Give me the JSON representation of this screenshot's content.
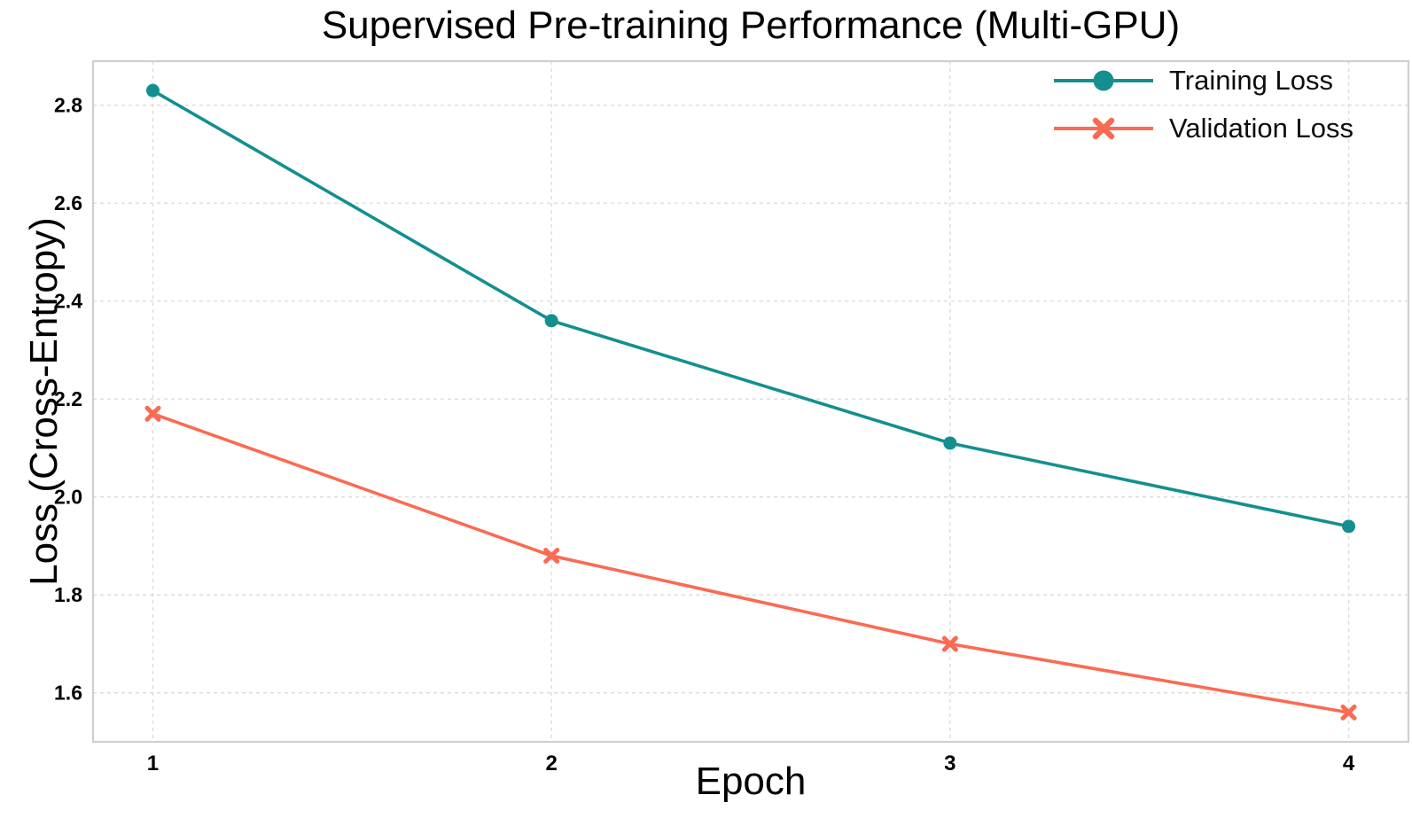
{
  "chart_data": {
    "type": "line",
    "title": "Supervised Pre-training Performance (Multi-GPU)",
    "xlabel": "Epoch",
    "ylabel": "Loss (Cross-Entropy)",
    "x": [
      1,
      2,
      3,
      4
    ],
    "series": [
      {
        "name": "Training Loss",
        "marker": "circle",
        "color": "#148F8F",
        "values": [
          2.83,
          2.36,
          2.11,
          1.94
        ]
      },
      {
        "name": "Validation Loss",
        "marker": "x",
        "color": "#FB6A52",
        "values": [
          2.17,
          1.88,
          1.7,
          1.56
        ]
      }
    ],
    "xlim": [
      0.85,
      4.15
    ],
    "ylim": [
      1.5,
      2.89
    ],
    "x_ticks": [
      1,
      2,
      3,
      4
    ],
    "y_ticks": [
      1.6,
      1.8,
      2.0,
      2.2,
      2.4,
      2.6,
      2.8
    ],
    "grid": "dashed",
    "grid_color": "#dcdcdc",
    "spine_color": "#cfcfcf",
    "legend_position": "top-right"
  }
}
